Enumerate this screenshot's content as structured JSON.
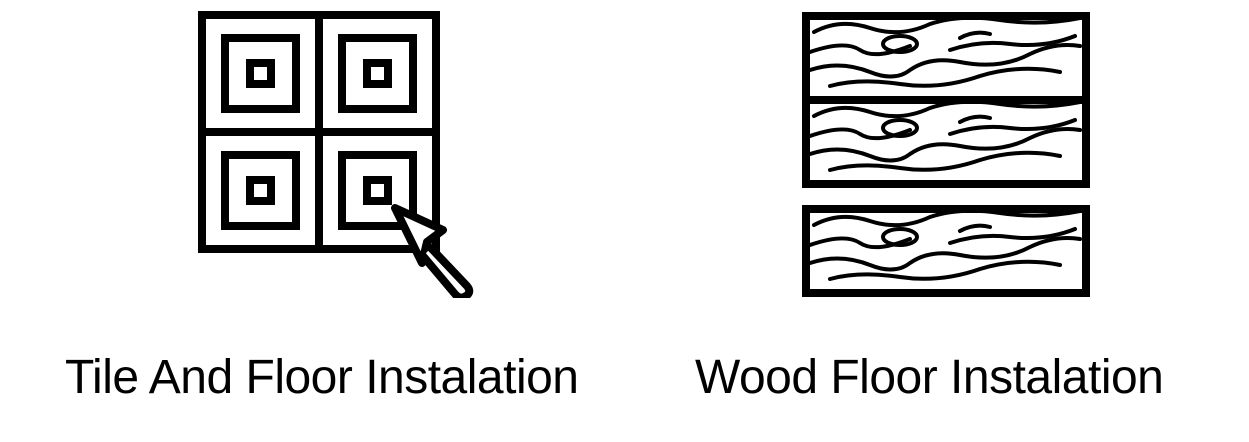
{
  "items": [
    {
      "label": "Tile And Floor Instalation",
      "icon": "tile-trowel-icon"
    },
    {
      "label": "Wood Floor Instalation",
      "icon": "wood-planks-icon"
    }
  ],
  "colors": {
    "ink": "#000000",
    "background": "#ffffff"
  }
}
